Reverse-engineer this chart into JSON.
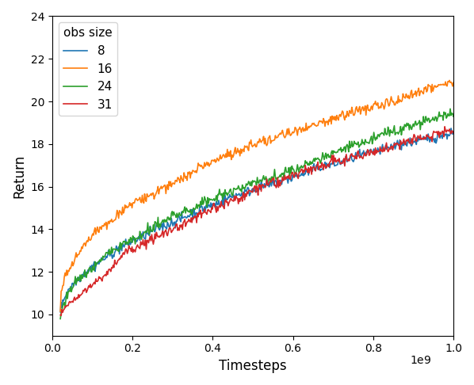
{
  "title": "",
  "xlabel": "Timesteps",
  "ylabel": "Return",
  "xlim": [
    0,
    1000000000.0
  ],
  "ylim": [
    9.0,
    24
  ],
  "yticks": [
    10,
    12,
    14,
    16,
    18,
    20,
    22,
    24
  ],
  "xticks": [
    0,
    200000000.0,
    400000000.0,
    600000000.0,
    800000000.0,
    1000000000.0
  ],
  "xticklabels": [
    "0.0",
    "0.2",
    "0.4",
    "0.6",
    "0.8",
    "1.0"
  ],
  "legend_title": "obs size",
  "series": [
    {
      "label": "8",
      "color": "#1f77b4"
    },
    {
      "label": "16",
      "color": "#ff7f0e"
    },
    {
      "label": "24",
      "color": "#2ca02c"
    },
    {
      "label": "31",
      "color": "#d62728"
    }
  ],
  "n_points": 500,
  "seed": 42,
  "figsize": [
    5.98,
    4.86
  ],
  "dpi": 100,
  "linewidth": 1.2
}
